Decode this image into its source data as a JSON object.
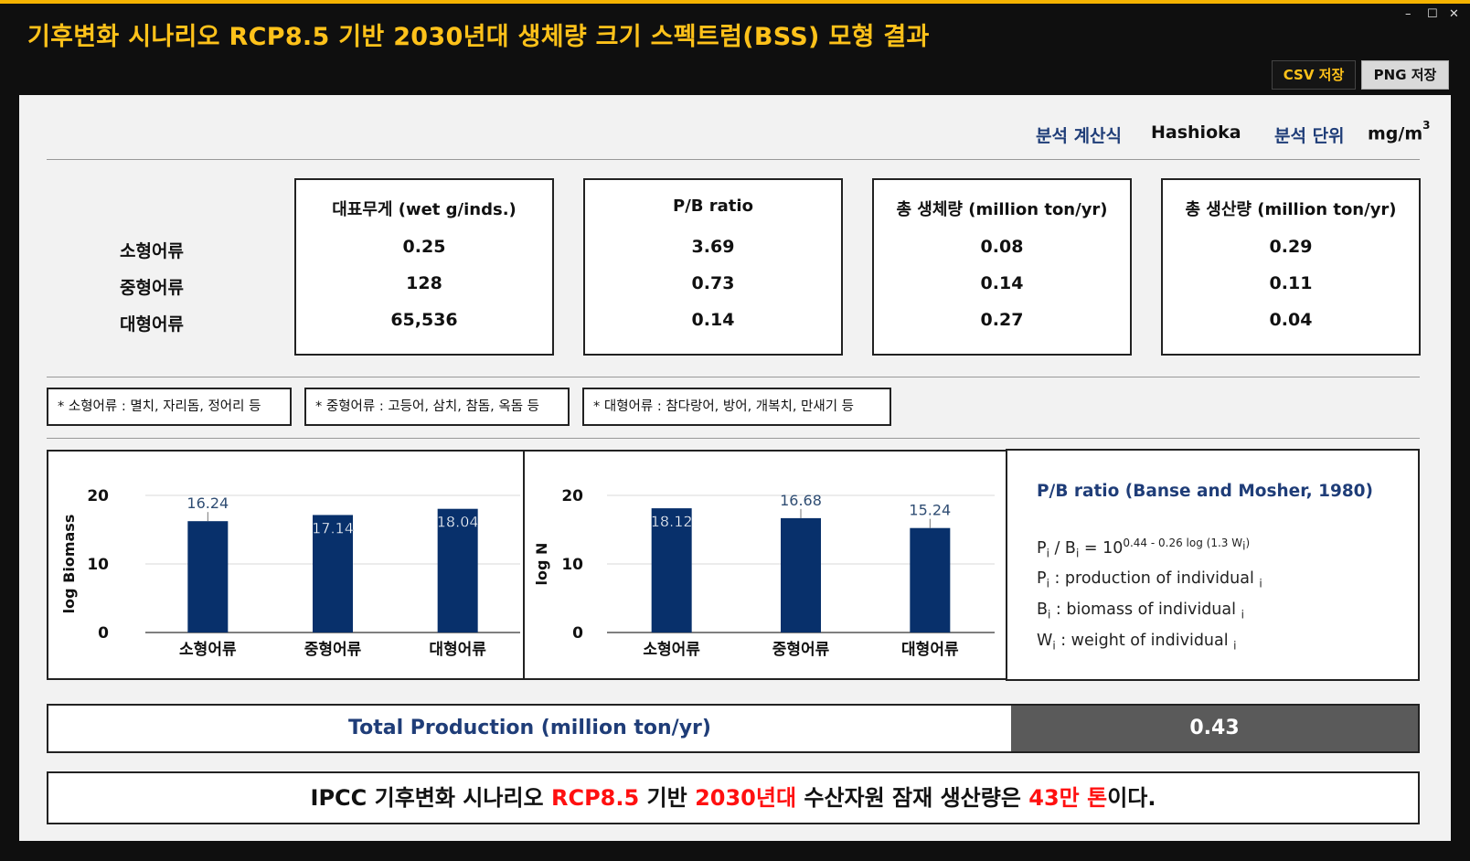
{
  "window": {
    "title": "기후변화 시나리오 RCP8.5 기반 2030년대 생체량 크기 스펙트럼(BSS) 모형 결과",
    "minimize": "–",
    "maximize": "☐",
    "close": "✕"
  },
  "toolbar": {
    "csv_label": "CSV 저장",
    "png_label": "PNG 저장"
  },
  "analysis": {
    "formula_label": "분석 계산식",
    "formula_value": "Hashioka",
    "unit_label": "분석 단위",
    "unit_value": "mg/m",
    "unit_exp": "3"
  },
  "rows": [
    "소형어류",
    "중형어류",
    "대형어류"
  ],
  "columns": [
    {
      "header": "대표무게 (wet g/inds.)",
      "values": [
        "0.25",
        "128",
        "65,536"
      ]
    },
    {
      "header": "P/B ratio",
      "values": [
        "3.69",
        "0.73",
        "0.14"
      ]
    },
    {
      "header": "총 생체량 (million ton/yr)",
      "values": [
        "0.08",
        "0.14",
        "0.27"
      ]
    },
    {
      "header": "총 생산량 (million ton/yr)",
      "values": [
        "0.29",
        "0.11",
        "0.04"
      ]
    }
  ],
  "notes": [
    "* 소형어류 : 멸치, 자리돔, 정어리 등",
    "* 중형어류 : 고등어, 삼치, 참돔, 옥돔 등",
    "* 대형어류 : 참다랑어, 방어, 개복치, 만새기 등"
  ],
  "chart_data": [
    {
      "type": "bar",
      "categories": [
        "소형어류",
        "중형어류",
        "대형어류"
      ],
      "values": [
        16.24,
        17.14,
        18.04
      ],
      "data_labels": [
        "16.24",
        "17.14",
        "18.04"
      ],
      "ylabel": "log Biomass",
      "ylim": [
        0,
        20
      ],
      "yticks": [
        "0",
        "10",
        "20"
      ],
      "grid": true,
      "color": "#08306b"
    },
    {
      "type": "bar",
      "categories": [
        "소형어류",
        "중형어류",
        "대형어류"
      ],
      "values": [
        18.12,
        16.68,
        15.24
      ],
      "data_labels": [
        "18.12",
        "16.68",
        "15.24"
      ],
      "ylabel": "log N",
      "ylim": [
        0,
        20
      ],
      "yticks": [
        "0",
        "10",
        "20"
      ],
      "grid": true,
      "color": "#08306b"
    }
  ],
  "formula": {
    "title": "P/B ratio (Banse and Mosher, 1980)",
    "eq_lhs_p": "P",
    "eq_sub_i": "i",
    "eq_slash": " / B",
    "eq_equals": " = 10",
    "eq_exp": "0.44 - 0.26 log (1.3 W",
    "eq_exp_close": ")",
    "p_sym": "P",
    "p_desc": " : production of individual ",
    "b_sym": "B",
    "b_desc": " : biomass of individual ",
    "w_sym": "W",
    "w_desc": " : weight of individual ",
    "idx": "i"
  },
  "total": {
    "label": "Total Production (million ton/yr)",
    "value": "0.43"
  },
  "summary": {
    "part1": "IPCC 기후변화 시나리오 ",
    "rcp": "RCP8.5",
    "part2": " 기반 ",
    "decade": "2030년대",
    "part3": " 수산자원 잠재 생산량은 ",
    "amount": "43만 톤",
    "part4": "이다."
  }
}
